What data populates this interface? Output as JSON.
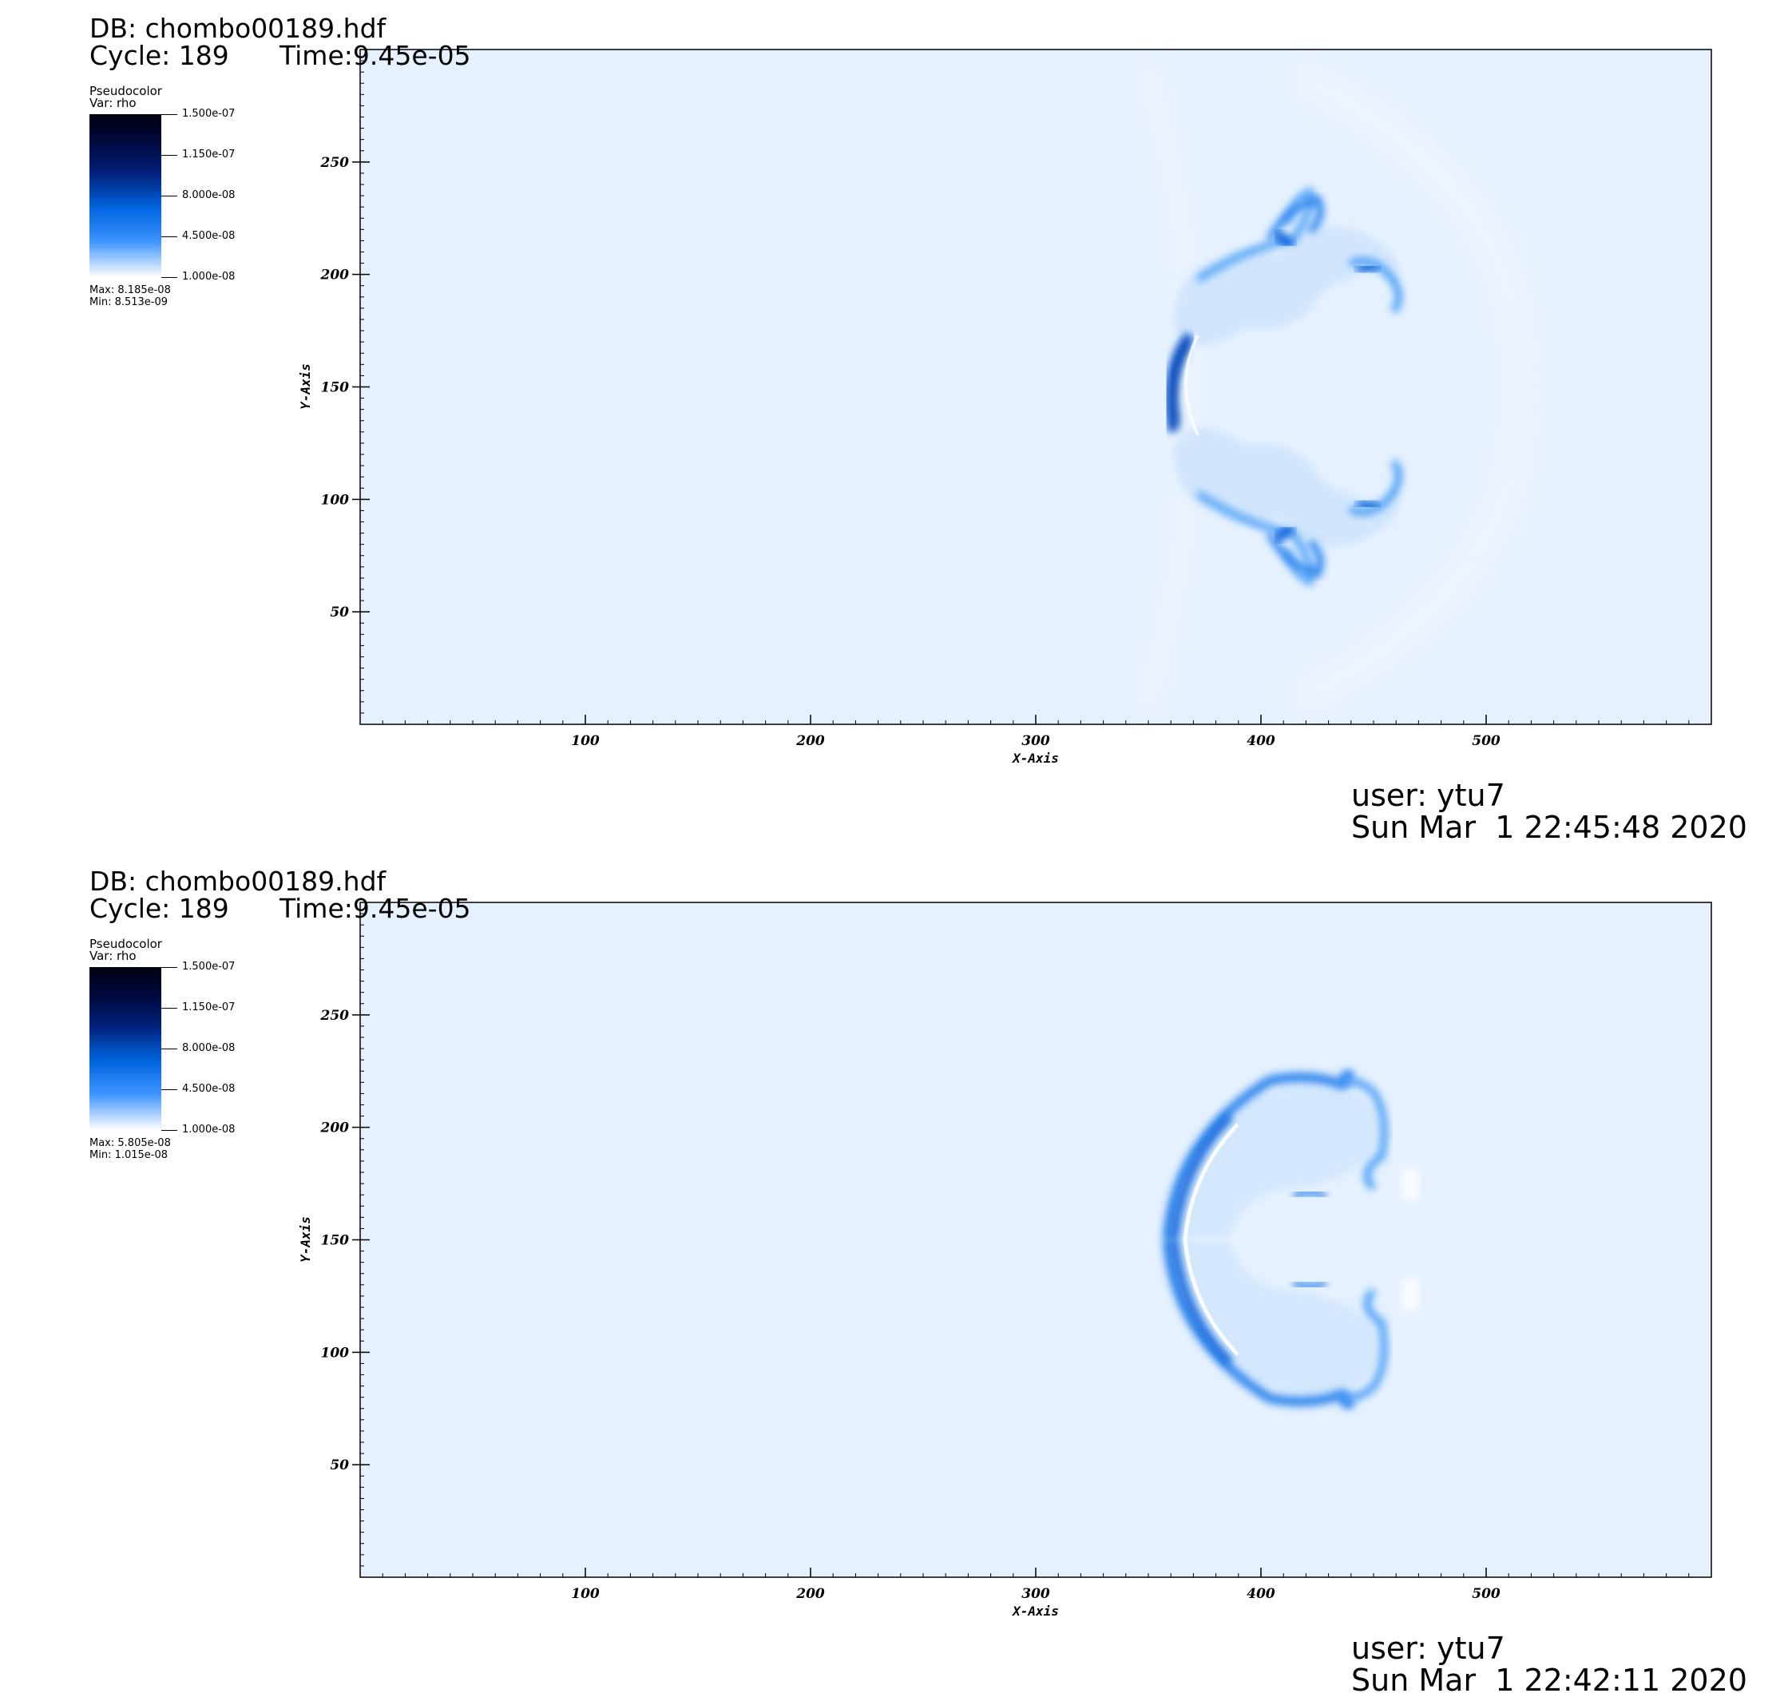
{
  "panels": [
    {
      "db_label": "DB: chombo00189.hdf",
      "cycle_label": "Cycle: 189",
      "time_label": "Time:9.45e-05",
      "legend": {
        "plot_type": "Pseudocolor",
        "var_label": "Var: rho",
        "ticks": [
          "1.500e-07",
          "1.150e-07",
          "8.000e-08",
          "4.500e-08",
          "1.000e-08"
        ],
        "max_label": "Max:  8.185e-08",
        "min_label": "Min:  8.513e-09",
        "colors": [
          "#000010",
          "#000a40",
          "#00207a",
          "#0066e0",
          "#3d94ff",
          "#ffffff"
        ]
      },
      "user_label": "user: ytu7",
      "date_label": "Sun Mar  1 22:45:48 2020",
      "chart_data": {
        "type": "heatmap",
        "variable": "rho",
        "xlabel": "X-Axis",
        "ylabel": "Y-Axis",
        "xlim": [
          0,
          600
        ],
        "ylim": [
          0,
          300
        ],
        "xticks": [
          100,
          200,
          300,
          400,
          500
        ],
        "yticks": [
          50,
          100,
          150,
          200,
          250
        ],
        "background_color": "#e5f1fe",
        "value_range": [
          8.513e-09,
          8.185e-08
        ]
      }
    },
    {
      "db_label": "DB: chombo00189.hdf",
      "cycle_label": "Cycle: 189",
      "time_label": "Time:9.45e-05",
      "legend": {
        "plot_type": "Pseudocolor",
        "var_label": "Var: rho",
        "ticks": [
          "1.500e-07",
          "1.150e-07",
          "8.000e-08",
          "4.500e-08",
          "1.000e-08"
        ],
        "max_label": "Max:  5.805e-08",
        "min_label": "Min:  1.015e-08",
        "colors": [
          "#000010",
          "#000a40",
          "#00207a",
          "#0066e0",
          "#3d94ff",
          "#ffffff"
        ]
      },
      "user_label": "user: ytu7",
      "date_label": "Sun Mar  1 22:42:11 2020",
      "chart_data": {
        "type": "heatmap",
        "variable": "rho",
        "xlabel": "X-Axis",
        "ylabel": "Y-Axis",
        "xlim": [
          0,
          600
        ],
        "ylim": [
          0,
          300
        ],
        "xticks": [
          100,
          200,
          300,
          400,
          500
        ],
        "yticks": [
          50,
          100,
          150,
          200,
          250
        ],
        "background_color": "#e5f1fe",
        "value_range": [
          1.015e-08,
          5.805e-08
        ]
      }
    }
  ]
}
